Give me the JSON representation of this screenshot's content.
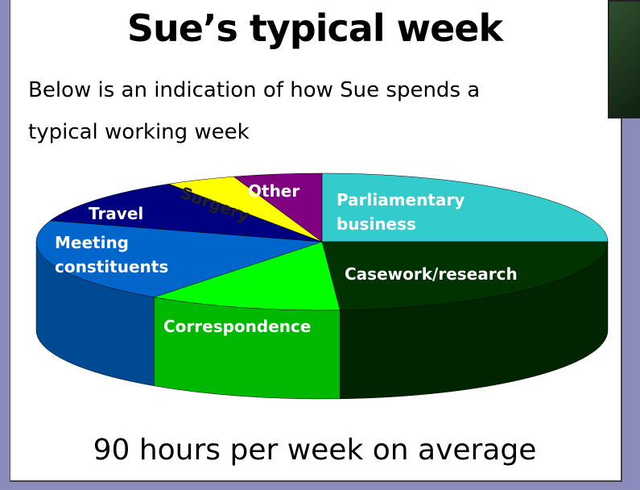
{
  "chart_data": {
    "type": "pie",
    "title": "Sue’s typical week",
    "subtitle": "Below is an indication of how Sue spends a typical working week",
    "caption": "90 hours per week on average",
    "categories": [
      "Parliamentary business",
      "Casework/research",
      "Correspondence",
      "Meeting constituents",
      "Travel",
      "Surgery",
      "Other"
    ],
    "values": [
      25,
      24,
      11,
      20,
      11,
      4,
      5
    ],
    "colors": [
      "#33cccc",
      "#003300",
      "#00ff00",
      "#0066cc",
      "#000080",
      "#ffff00",
      "#800080"
    ],
    "label_colors": [
      "#ffffff",
      "#ffffff",
      "#ffffff",
      "#ffffff",
      "#ffffff",
      "#222222",
      "#ffffff"
    ]
  }
}
